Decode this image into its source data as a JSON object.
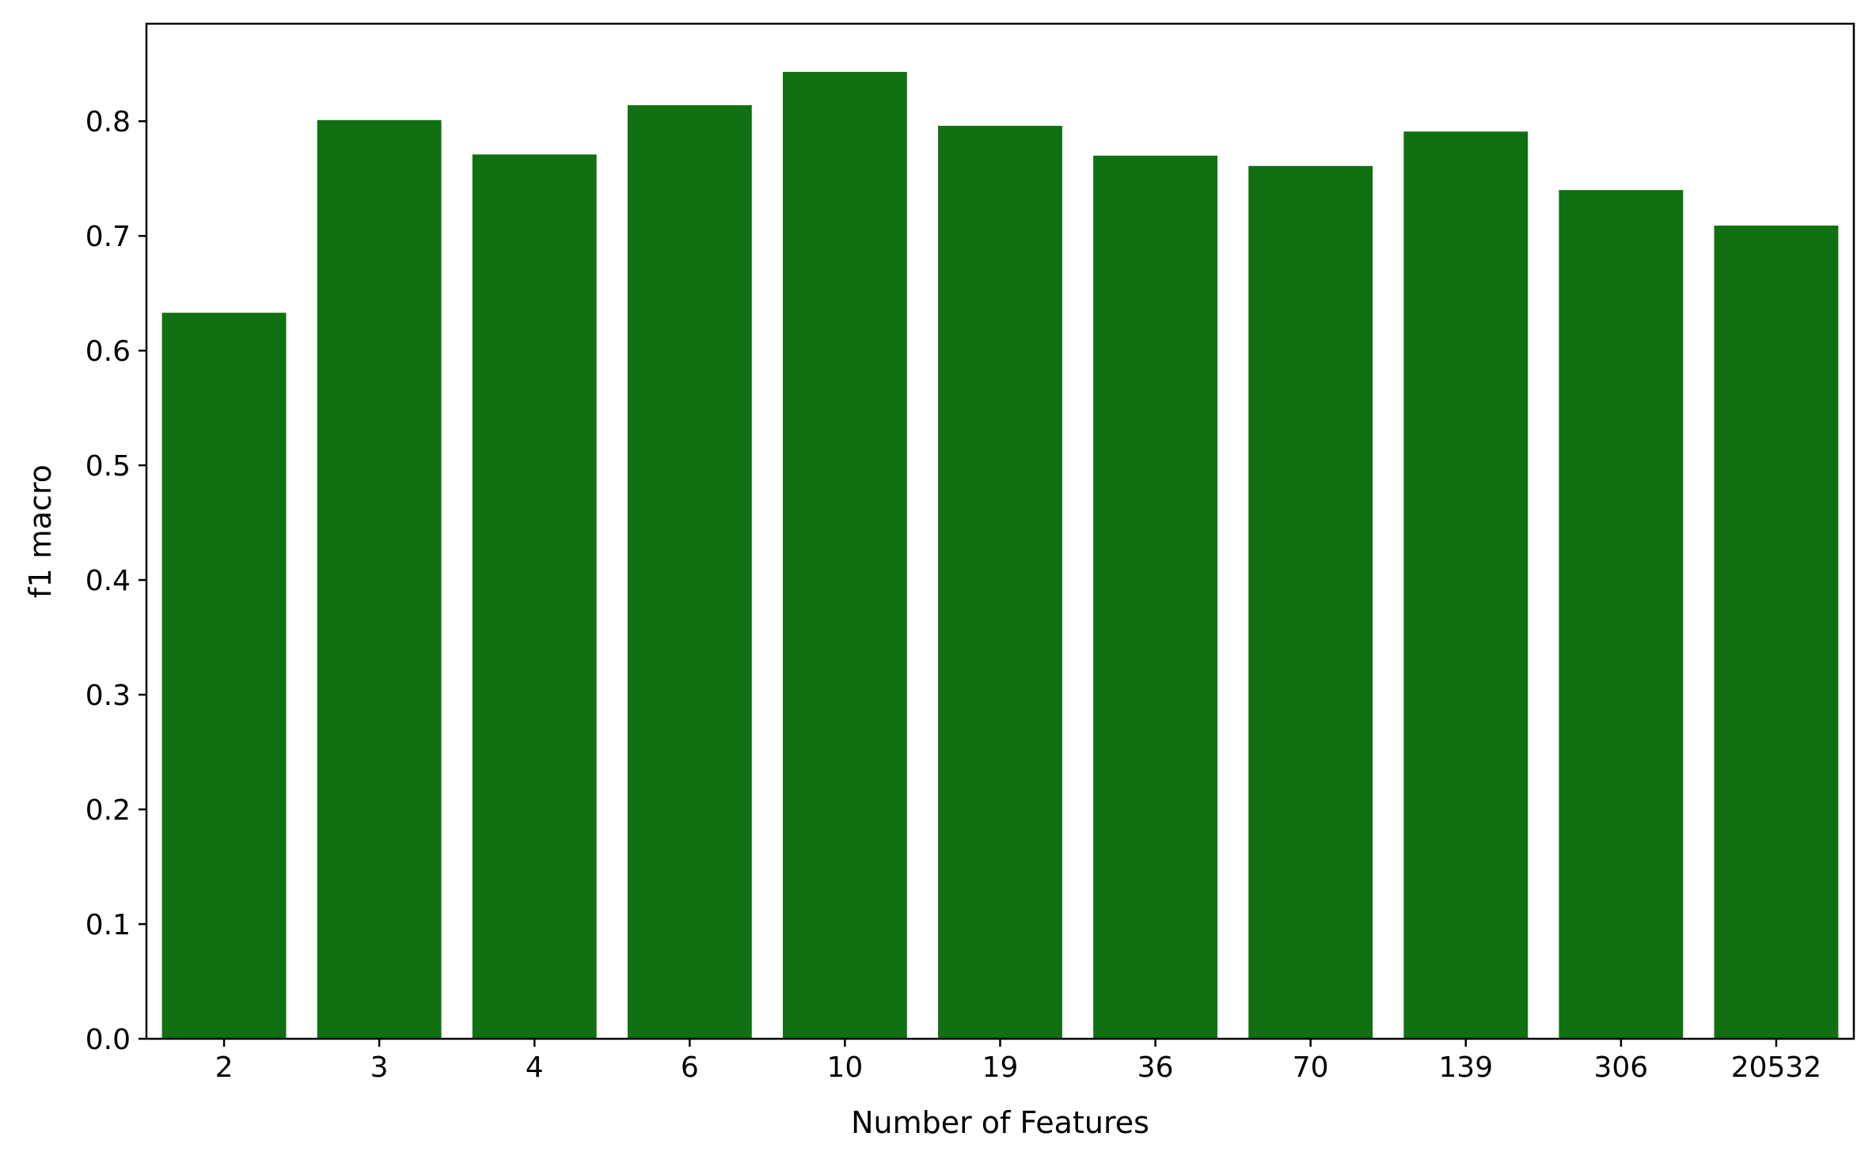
{
  "chart_data": {
    "type": "bar",
    "categories": [
      "2",
      "3",
      "4",
      "6",
      "10",
      "19",
      "36",
      "70",
      "139",
      "306",
      "20532"
    ],
    "values": [
      0.633,
      0.801,
      0.771,
      0.814,
      0.843,
      0.796,
      0.77,
      0.761,
      0.791,
      0.74,
      0.709
    ],
    "xlabel": "Number of Features",
    "ylabel": "f1 macro",
    "ylim": [
      0,
      0.885
    ],
    "yticks": [
      "0.0",
      "0.1",
      "0.2",
      "0.3",
      "0.4",
      "0.5",
      "0.6",
      "0.7",
      "0.8"
    ],
    "bar_color": "#117011",
    "grid": false,
    "legend": "none"
  }
}
